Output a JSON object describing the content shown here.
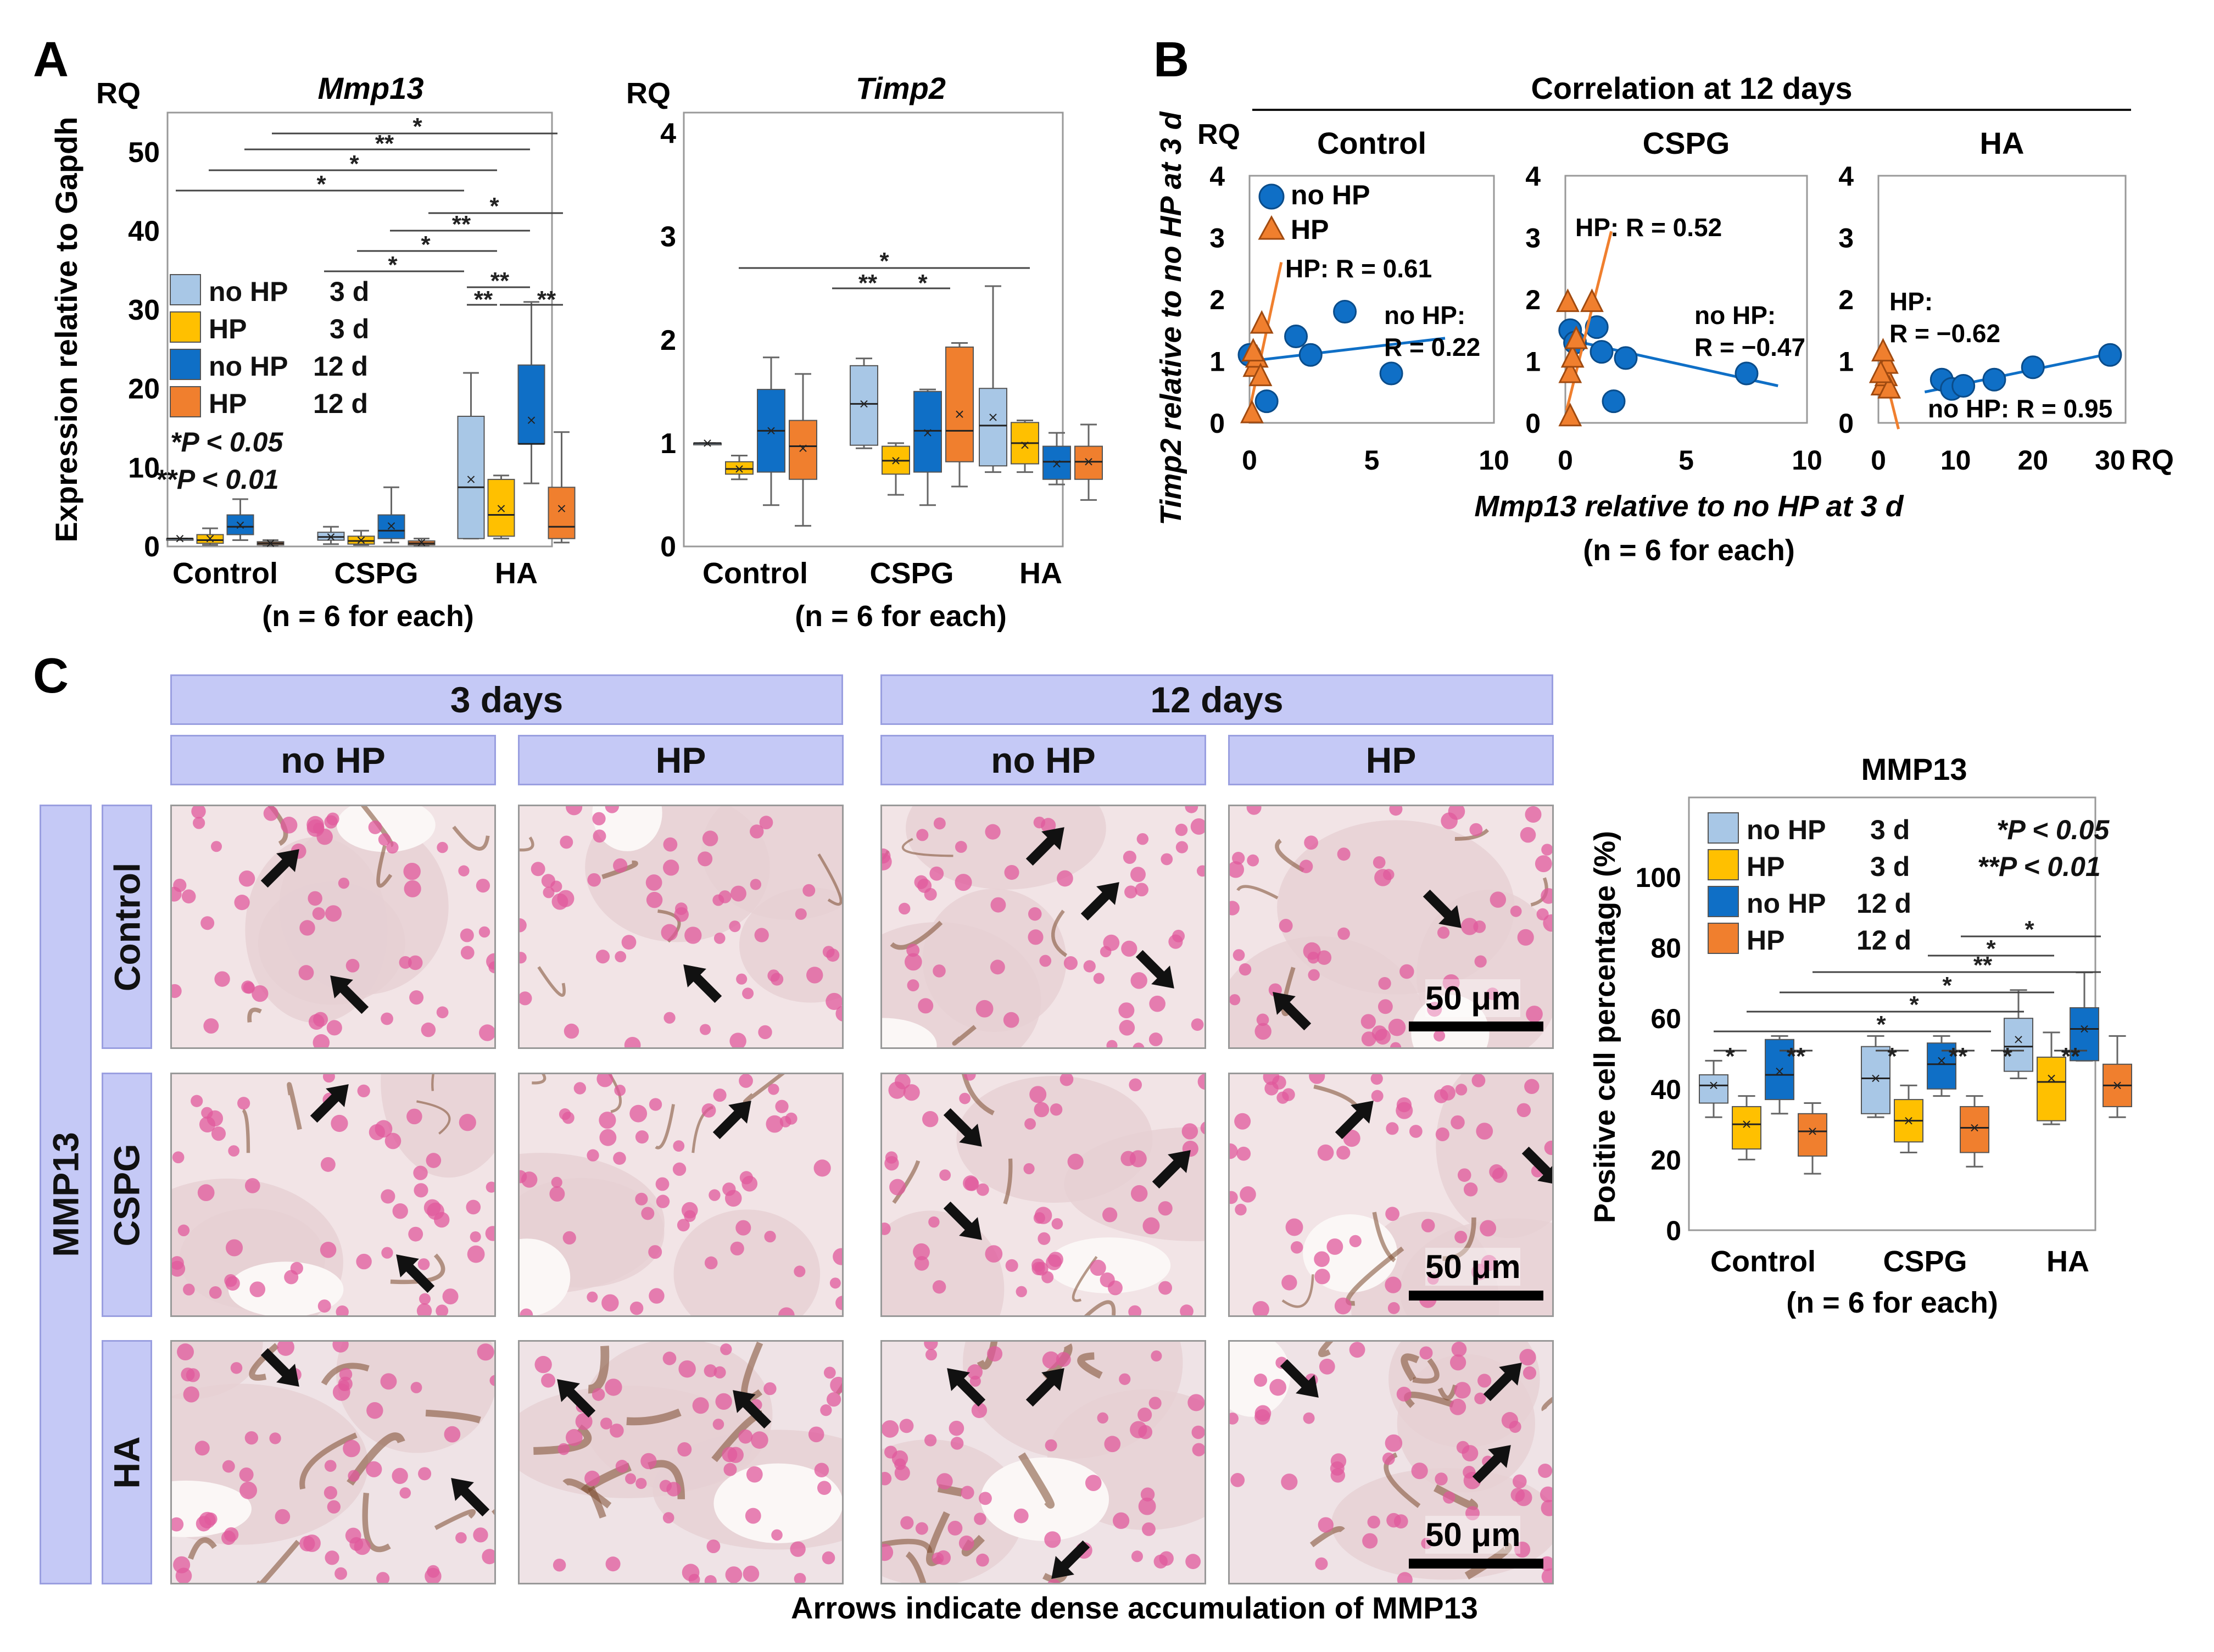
{
  "panel_letters": {
    "a": "A",
    "b": "B",
    "c": "C"
  },
  "colors": {
    "noHP3": "#a8c7e6",
    "HP3": "#ffc000",
    "noHP12": "#0f6fc6",
    "HP12": "#f07f2e",
    "header_bg": "#c5c9f6",
    "nuclei": "#e05a9c",
    "stain": "#7b4a2e"
  },
  "panelA": {
    "y_axis_title": "Expression relative to Gapdh",
    "rq_label": "RQ",
    "n_note": "(n = 6 for each)",
    "legend": [
      {
        "label": "no HP",
        "day": "3 d"
      },
      {
        "label": "HP",
        "day": "3 d"
      },
      {
        "label": "no HP",
        "day": "12 d"
      },
      {
        "label": "HP",
        "day": "12 d"
      }
    ],
    "sig_note_1": "*P < 0.05",
    "sig_note_2": "**P < 0.01"
  },
  "panelB": {
    "title": "Correlation at 12 days",
    "rq_label": "RQ",
    "y_axis_title": "Timp2 relative to no HP at 3 d",
    "x_axis_title": "Mmp13 relative to no HP at 3 d",
    "n_note": "(n = 6 for each)",
    "legend": [
      "no HP",
      "HP"
    ],
    "x_end_label": "RQ"
  },
  "panelC": {
    "time_headers": [
      "3 days",
      "12 days"
    ],
    "condition_headers": [
      "no HP",
      "HP",
      "no HP",
      "HP"
    ],
    "row_group": "MMP13",
    "row_labels": [
      "Control",
      "CSPG",
      "HA"
    ],
    "scale_bar": "50 μm",
    "caption": "Arrows indicate dense accumulation of MMP13"
  },
  "chart_data": [
    {
      "type": "box",
      "title": "Mmp13",
      "ylabel": "Expression relative to Gapdh",
      "ylim": [
        0,
        55
      ],
      "yticks": [
        0,
        10,
        20,
        30,
        40,
        50
      ],
      "categories": [
        "Control",
        "CSPG",
        "HA"
      ],
      "series": [
        {
          "name": "no HP 3 d",
          "boxes": [
            {
              "min": 1,
              "q1": 1,
              "median": 1,
              "q3": 1,
              "max": 1,
              "mean": 1
            },
            {
              "min": 0.3,
              "q1": 0.8,
              "median": 1.2,
              "q3": 1.8,
              "max": 2.5,
              "mean": 1.2
            },
            {
              "min": 1,
              "q1": 1,
              "median": 7.5,
              "q3": 16.5,
              "max": 22,
              "mean": 8.5
            }
          ]
        },
        {
          "name": "HP 3 d",
          "boxes": [
            {
              "min": 0.2,
              "q1": 0.4,
              "median": 0.8,
              "q3": 1.5,
              "max": 2.3,
              "mean": 1
            },
            {
              "min": 0.2,
              "q1": 0.3,
              "median": 0.7,
              "q3": 1.3,
              "max": 2,
              "mean": 0.8
            },
            {
              "min": 1,
              "q1": 1.3,
              "median": 4,
              "q3": 8.5,
              "max": 9,
              "mean": 4.8
            }
          ]
        },
        {
          "name": "no HP 12 d",
          "boxes": [
            {
              "min": 0.8,
              "q1": 1.5,
              "median": 2.5,
              "q3": 4,
              "max": 6,
              "mean": 2.7
            },
            {
              "min": 0.5,
              "q1": 1,
              "median": 2,
              "q3": 4,
              "max": 7.5,
              "mean": 2.6
            },
            {
              "min": 8,
              "q1": 13,
              "median": 13,
              "q3": 23,
              "max": 31,
              "mean": 16
            }
          ]
        },
        {
          "name": "HP 12 d",
          "boxes": [
            {
              "min": 0.1,
              "q1": 0.2,
              "median": 0.4,
              "q3": 0.6,
              "max": 0.8,
              "mean": 0.4
            },
            {
              "min": 0.1,
              "q1": 0.2,
              "median": 0.4,
              "q3": 0.7,
              "max": 1,
              "mean": 0.5
            },
            {
              "min": 0.5,
              "q1": 1,
              "median": 2.5,
              "q3": 7.5,
              "max": 14.5,
              "mean": 4.8
            }
          ]
        }
      ],
      "significance": [
        {
          "label": "*"
        },
        {
          "label": "**"
        },
        {
          "label": "*"
        },
        {
          "label": "*"
        },
        {
          "label": "*"
        },
        {
          "label": "**"
        },
        {
          "label": "*"
        },
        {
          "label": "*"
        },
        {
          "label": "**"
        },
        {
          "label": "**"
        },
        {
          "label": "**"
        }
      ]
    },
    {
      "type": "box",
      "title": "Timp2",
      "ylim": [
        0,
        4.2
      ],
      "yticks": [
        0,
        1,
        2,
        3,
        4
      ],
      "categories": [
        "Control",
        "CSPG",
        "HA"
      ],
      "series": [
        {
          "name": "no HP 3 d",
          "boxes": [
            {
              "min": 1,
              "q1": 1,
              "median": 1,
              "q3": 1,
              "max": 1,
              "mean": 1
            },
            {
              "min": 0.95,
              "q1": 0.98,
              "median": 1.38,
              "q3": 1.75,
              "max": 1.82,
              "mean": 1.38
            },
            {
              "min": 0.72,
              "q1": 0.78,
              "median": 1.17,
              "q3": 1.53,
              "max": 2.52,
              "mean": 1.25
            }
          ]
        },
        {
          "name": "HP 3 d",
          "boxes": [
            {
              "min": 0.65,
              "q1": 0.7,
              "median": 0.75,
              "q3": 0.82,
              "max": 0.88,
              "mean": 0.75
            },
            {
              "min": 0.5,
              "q1": 0.7,
              "median": 0.83,
              "q3": 0.97,
              "max": 1,
              "mean": 0.83
            },
            {
              "min": 0.72,
              "q1": 0.8,
              "median": 1,
              "q3": 1.2,
              "max": 1.22,
              "mean": 0.98
            }
          ]
        },
        {
          "name": "no HP 12 d",
          "boxes": [
            {
              "min": 0.4,
              "q1": 0.72,
              "median": 1.12,
              "q3": 1.52,
              "max": 1.83,
              "mean": 1.12
            },
            {
              "min": 0.4,
              "q1": 0.72,
              "median": 1.12,
              "q3": 1.5,
              "max": 1.52,
              "mean": 1.1
            },
            {
              "min": 0.6,
              "q1": 0.65,
              "median": 0.82,
              "q3": 0.97,
              "max": 1.1,
              "mean": 0.8
            }
          ]
        },
        {
          "name": "HP 12 d",
          "boxes": [
            {
              "min": 0.2,
              "q1": 0.65,
              "median": 0.97,
              "q3": 1.22,
              "max": 1.67,
              "mean": 0.95
            },
            {
              "min": 0.58,
              "q1": 0.82,
              "median": 1.12,
              "q3": 1.93,
              "max": 1.97,
              "mean": 1.28
            },
            {
              "min": 0.45,
              "q1": 0.65,
              "median": 0.82,
              "q3": 0.97,
              "max": 1.18,
              "mean": 0.82
            }
          ]
        }
      ],
      "significance": [
        {
          "label": "*"
        },
        {
          "label": "**"
        },
        {
          "label": "*"
        }
      ]
    },
    {
      "type": "scatter",
      "title": "Control",
      "xlim": [
        0,
        10
      ],
      "ylim": [
        0,
        4
      ],
      "xticks": [
        0,
        5,
        10
      ],
      "yticks": [
        0,
        1,
        2,
        3,
        4
      ],
      "series": [
        {
          "name": "no HP",
          "points": [
            [
              0,
              1.1
            ],
            [
              0.7,
              0.35
            ],
            [
              1.9,
              1.4
            ],
            [
              2.5,
              1.1
            ],
            [
              3.9,
              1.8
            ],
            [
              5.8,
              0.8
            ]
          ],
          "fit": [
            [
              0,
              1.0
            ],
            [
              8,
              1.37
            ]
          ],
          "r_label": "no HP: R = 0.22"
        },
        {
          "name": "HP",
          "points": [
            [
              0.1,
              0.15
            ],
            [
              0.2,
              0.9
            ],
            [
              0.3,
              1.05
            ],
            [
              0.45,
              0.75
            ],
            [
              0.5,
              1.6
            ],
            [
              0.15,
              1.15
            ]
          ],
          "fit": [
            [
              0.05,
              0.3
            ],
            [
              1.3,
              2.6
            ]
          ],
          "r_label": "HP: R = 0.61"
        }
      ]
    },
    {
      "type": "scatter",
      "title": "CSPG",
      "xlim": [
        0,
        10
      ],
      "ylim": [
        0,
        4
      ],
      "xticks": [
        0,
        5,
        10
      ],
      "yticks": [
        0,
        1,
        2,
        3,
        4
      ],
      "series": [
        {
          "name": "no HP",
          "points": [
            [
              0.2,
              1.5
            ],
            [
              0.4,
              1.3
            ],
            [
              1.3,
              1.55
            ],
            [
              1.5,
              1.15
            ],
            [
              2.5,
              1.05
            ],
            [
              2,
              0.35
            ],
            [
              7.5,
              0.8
            ]
          ],
          "fit": [
            [
              0.1,
              1.35
            ],
            [
              8.8,
              0.6
            ]
          ],
          "r_label": "no HP: R = −0.47"
        },
        {
          "name": "HP",
          "points": [
            [
              0.1,
              1.95
            ],
            [
              0.2,
              0.8
            ],
            [
              0.3,
              1.05
            ],
            [
              0.45,
              1.35
            ],
            [
              1.1,
              1.95
            ],
            [
              0.2,
              0.1
            ]
          ],
          "fit": [
            [
              0.05,
              0.2
            ],
            [
              1.9,
              3.1
            ]
          ],
          "r_label": "HP: R = 0.52"
        }
      ]
    },
    {
      "type": "scatter",
      "title": "HA",
      "xlim": [
        0,
        32
      ],
      "ylim": [
        0,
        4
      ],
      "xticks": [
        0,
        10,
        20,
        30
      ],
      "yticks": [
        0,
        1,
        2,
        3,
        4
      ],
      "x_end_label": "RQ",
      "series": [
        {
          "name": "no HP",
          "points": [
            [
              8.2,
              0.7
            ],
            [
              9.5,
              0.55
            ],
            [
              11,
              0.6
            ],
            [
              15,
              0.7
            ],
            [
              20,
              0.9
            ],
            [
              30,
              1.1
            ]
          ],
          "fit": [
            [
              6,
              0.5
            ],
            [
              30,
              1.12
            ]
          ],
          "r_label": "no HP: R = 0.95"
        },
        {
          "name": "HP",
          "points": [
            [
              0.5,
              0.6
            ],
            [
              1,
              0.75
            ],
            [
              1.1,
              0.95
            ],
            [
              1.4,
              0.55
            ],
            [
              0.6,
              1.15
            ],
            [
              0.3,
              0.8
            ]
          ],
          "fit": [
            [
              0.2,
              1.1
            ],
            [
              2.6,
              -0.1
            ]
          ],
          "r_label": "HP: R = −0.62"
        }
      ]
    },
    {
      "type": "box",
      "title": "MMP13",
      "ylabel": "Positive cell percentage (%)",
      "ylim": [
        0,
        100
      ],
      "yticks": [
        0,
        20,
        40,
        60,
        80,
        100
      ],
      "categories": [
        "Control",
        "CSPG",
        "HA"
      ],
      "series": [
        {
          "name": "no HP 3 d",
          "boxes": [
            {
              "min": 32,
              "q1": 36,
              "median": 41,
              "q3": 44,
              "max": 48,
              "mean": 41
            },
            {
              "min": 32,
              "q1": 33,
              "median": 43,
              "q3": 52,
              "max": 55,
              "mean": 43
            },
            {
              "min": 43,
              "q1": 45,
              "median": 52,
              "q3": 60,
              "max": 68,
              "mean": 54
            }
          ]
        },
        {
          "name": "HP 3 d",
          "boxes": [
            {
              "min": 20,
              "q1": 23,
              "median": 30,
              "q3": 35,
              "max": 38,
              "mean": 30
            },
            {
              "min": 22,
              "q1": 25,
              "median": 31,
              "q3": 37,
              "max": 41,
              "mean": 31
            },
            {
              "min": 30,
              "q1": 31,
              "median": 42,
              "q3": 49,
              "max": 56,
              "mean": 43
            }
          ]
        },
        {
          "name": "no HP 12 d",
          "boxes": [
            {
              "min": 33,
              "q1": 37,
              "median": 44,
              "q3": 54,
              "max": 55,
              "mean": 45
            },
            {
              "min": 38,
              "q1": 40,
              "median": 47,
              "q3": 53,
              "max": 55,
              "mean": 48
            },
            {
              "min": 48,
              "q1": 48,
              "median": 57,
              "q3": 63,
              "max": 73,
              "mean": 57
            }
          ]
        },
        {
          "name": "HP 12 d",
          "boxes": [
            {
              "min": 16,
              "q1": 21,
              "median": 28,
              "q3": 33,
              "max": 36,
              "mean": 28
            },
            {
              "min": 18,
              "q1": 22,
              "median": 29,
              "q3": 35,
              "max": 38,
              "mean": 29
            },
            {
              "min": 32,
              "q1": 35,
              "median": 41,
              "q3": 47,
              "max": 55,
              "mean": 41
            }
          ]
        }
      ],
      "significance": [
        {
          "label": "*"
        },
        {
          "label": "*"
        },
        {
          "label": "**"
        },
        {
          "label": "*"
        },
        {
          "label": "*"
        },
        {
          "label": "*"
        },
        {
          "label": "*"
        },
        {
          "label": "**"
        },
        {
          "label": "*"
        },
        {
          "label": "**"
        },
        {
          "label": "*"
        },
        {
          "label": "**"
        }
      ]
    }
  ]
}
